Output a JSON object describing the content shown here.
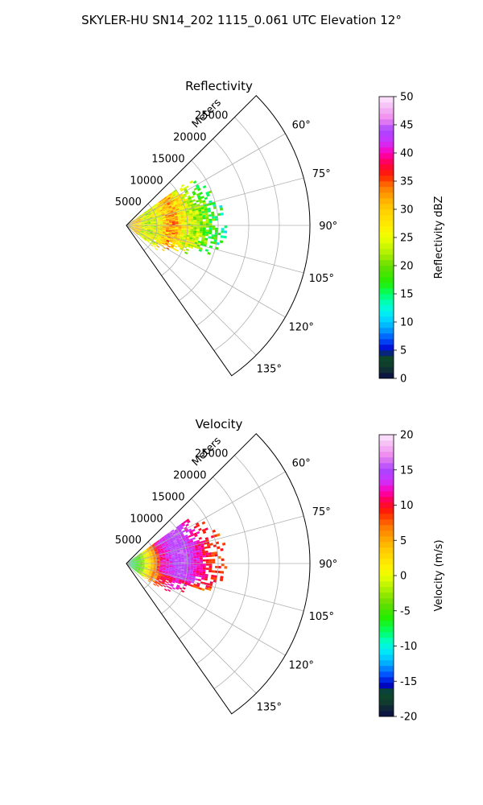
{
  "figure": {
    "title": "SKYLER-HU  SN14_202  1115_0.061 UTC Elevation 12°"
  },
  "chart_data": [
    {
      "type": "heatmap",
      "projection": "polar-sector",
      "title": "Reflectivity",
      "radial_label": "Meters",
      "radial_ticks": [
        5000,
        10000,
        15000,
        20000,
        25000
      ],
      "rlim": [
        0,
        30000
      ],
      "azimuth_range_deg": [
        45,
        145
      ],
      "azimuth_ticks": [
        60,
        75,
        90,
        105,
        120,
        135
      ],
      "grid": true,
      "field": {
        "description_range_m": [
          0,
          16000
        ],
        "peak_rings_m": [
          6500,
          8500
        ]
      },
      "colorbar": {
        "label": "Reflectivity dBZ",
        "min": 0,
        "max": 50,
        "ticks": [
          0,
          5,
          10,
          15,
          20,
          25,
          30,
          35,
          40,
          45,
          50
        ],
        "stops": [
          {
            "v": 0,
            "c": "#0a0a46"
          },
          {
            "v": 2,
            "c": "#123b2f"
          },
          {
            "v": 4,
            "c": "#0b4a2a"
          },
          {
            "v": 5,
            "c": "#0000cc"
          },
          {
            "v": 7,
            "c": "#0055ff"
          },
          {
            "v": 9,
            "c": "#00aaff"
          },
          {
            "v": 11,
            "c": "#00e5ff"
          },
          {
            "v": 13,
            "c": "#00ffcc"
          },
          {
            "v": 15,
            "c": "#00ff66"
          },
          {
            "v": 17,
            "c": "#22ee00"
          },
          {
            "v": 20,
            "c": "#66dd00"
          },
          {
            "v": 22,
            "c": "#aaee00"
          },
          {
            "v": 25,
            "c": "#eeff00"
          },
          {
            "v": 27,
            "c": "#ffee00"
          },
          {
            "v": 30,
            "c": "#ffcc00"
          },
          {
            "v": 32,
            "c": "#ffaa00"
          },
          {
            "v": 34,
            "c": "#ff7700"
          },
          {
            "v": 36,
            "c": "#ff2200"
          },
          {
            "v": 38,
            "c": "#ff0044"
          },
          {
            "v": 40,
            "c": "#ff00bb"
          },
          {
            "v": 42,
            "c": "#cc33ff"
          },
          {
            "v": 44,
            "c": "#aa44ff"
          },
          {
            "v": 46,
            "c": "#ee88ee"
          },
          {
            "v": 48,
            "c": "#f4b8f4"
          },
          {
            "v": 50,
            "c": "#fde8fd"
          }
        ]
      }
    },
    {
      "type": "heatmap",
      "projection": "polar-sector",
      "title": "Velocity",
      "radial_label": "Meters",
      "radial_ticks": [
        5000,
        10000,
        15000,
        20000,
        25000
      ],
      "rlim": [
        0,
        30000
      ],
      "azimuth_range_deg": [
        45,
        145
      ],
      "azimuth_ticks": [
        60,
        75,
        90,
        105,
        120,
        135
      ],
      "grid": true,
      "field": {
        "description_range_m": [
          0,
          16000
        ]
      },
      "colorbar": {
        "label": "Velocity (m/s)",
        "min": -20,
        "max": 20,
        "ticks": [
          -20,
          -15,
          -10,
          -5,
          0,
          5,
          10,
          15,
          20
        ],
        "stops": [
          {
            "v": -20,
            "c": "#0a0a46"
          },
          {
            "v": -18,
            "c": "#123b2f"
          },
          {
            "v": -16.5,
            "c": "#0b4a2a"
          },
          {
            "v": -15.5,
            "c": "#0000cc"
          },
          {
            "v": -14,
            "c": "#0055ff"
          },
          {
            "v": -12.5,
            "c": "#00aaff"
          },
          {
            "v": -11,
            "c": "#00e5ff"
          },
          {
            "v": -9.5,
            "c": "#00ffcc"
          },
          {
            "v": -8,
            "c": "#00ff66"
          },
          {
            "v": -6,
            "c": "#22ee00"
          },
          {
            "v": -4,
            "c": "#66dd00"
          },
          {
            "v": -2,
            "c": "#aaee00"
          },
          {
            "v": 0,
            "c": "#eeff00"
          },
          {
            "v": 1.5,
            "c": "#ffee00"
          },
          {
            "v": 3.5,
            "c": "#ffcc00"
          },
          {
            "v": 5,
            "c": "#ffaa00"
          },
          {
            "v": 7,
            "c": "#ff7700"
          },
          {
            "v": 9,
            "c": "#ff2200"
          },
          {
            "v": 10.5,
            "c": "#ff0044"
          },
          {
            "v": 12,
            "c": "#ff00bb"
          },
          {
            "v": 13.5,
            "c": "#cc33ff"
          },
          {
            "v": 15,
            "c": "#aa44ff"
          },
          {
            "v": 17,
            "c": "#ee88ee"
          },
          {
            "v": 18.5,
            "c": "#f4b8f4"
          },
          {
            "v": 20,
            "c": "#fde8fd"
          }
        ]
      }
    }
  ]
}
